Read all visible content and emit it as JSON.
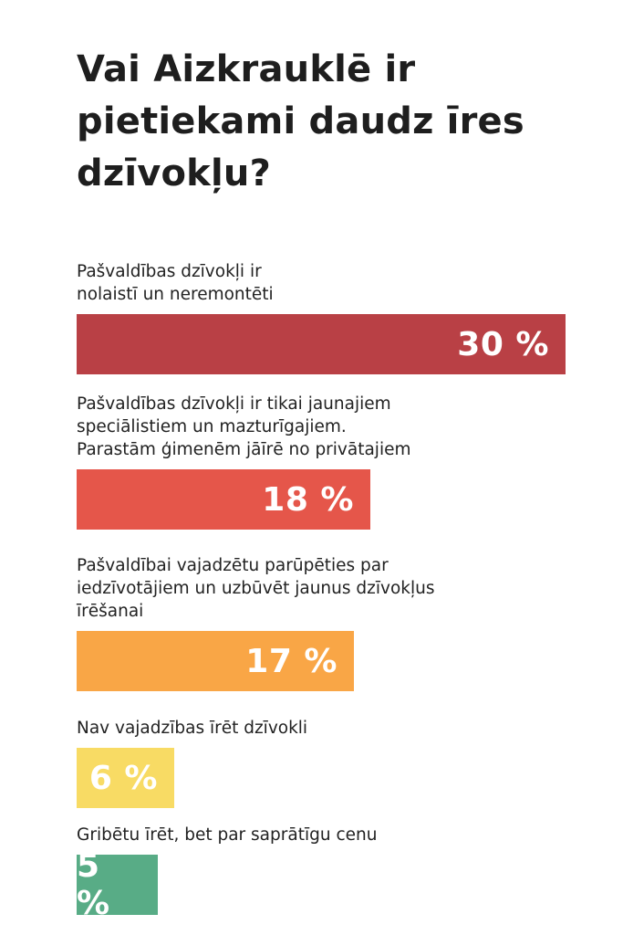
{
  "chart_data": {
    "type": "bar",
    "orientation": "horizontal",
    "title": "Vai Aizkrauklē ir pietiekami daudz īres dzīvokļu?",
    "categories": [
      "Pašvaldības dzīvokļi ir\nnolaistī un neremontēti",
      "Pašvaldības dzīvokļi ir tikai jaunajiem\nspeciālistiem un mazturīgajiem.\nParastām ģimenēm jāīrē no privātajiem",
      "Pašvaldībai vajadzētu parūpēties par\niedzīvotājiem un uzbūvēt jaunus dzīvokļus\nīrēšanai",
      "Nav vajadzības īrēt dzīvokli",
      "Gribētu īrēt, bet par saprātīgu cenu"
    ],
    "values": [
      30,
      18,
      17,
      6,
      5
    ],
    "value_labels": [
      "30 %",
      "18 %",
      "17 %",
      "6 %",
      "5 %"
    ],
    "colors": [
      "#b94045",
      "#e5564a",
      "#f9a646",
      "#f8db64",
      "#58ac86"
    ],
    "unit": "%",
    "xlim": [
      0,
      30
    ],
    "grid": false,
    "legend": "none"
  }
}
